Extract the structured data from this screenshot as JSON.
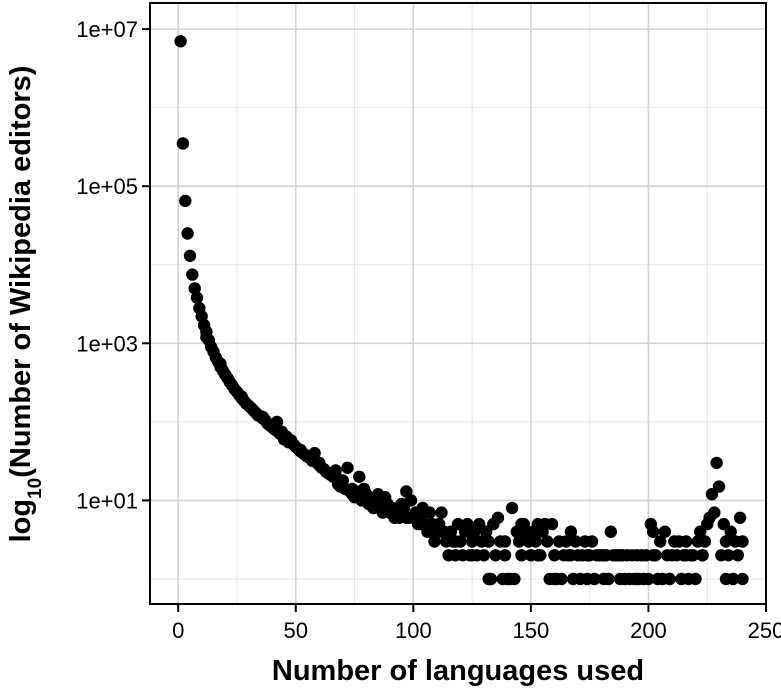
{
  "chart_data": {
    "type": "scatter",
    "title": "",
    "xlabel": "Number of languages used",
    "ylabel_parts": {
      "pre": "log",
      "sub": "10",
      "post": "(Number of Wikipedia editors)"
    },
    "xlim": [
      -12,
      250
    ],
    "ylim": [
      0.48,
      21500000
    ],
    "y_scale": "log10",
    "x_ticks": [
      0,
      50,
      100,
      150,
      200,
      250
    ],
    "x_tick_labels": [
      "0",
      "50",
      "100",
      "150",
      "200",
      "250"
    ],
    "y_ticks": [
      10,
      1000,
      100000,
      10000000
    ],
    "y_tick_labels": [
      "1e+01",
      "1e+03",
      "1e+05",
      "1e+07"
    ],
    "grid": true,
    "marker_color": "#000000",
    "points": [
      [
        1,
        7000000
      ],
      [
        2,
        350000
      ],
      [
        3,
        65000
      ],
      [
        4,
        25000
      ],
      [
        5,
        13000
      ],
      [
        6,
        7500
      ],
      [
        7,
        5000
      ],
      [
        8,
        3800
      ],
      [
        9,
        2800
      ],
      [
        10,
        2200
      ],
      [
        11,
        1700
      ],
      [
        12,
        1400
      ],
      [
        13,
        1100
      ],
      [
        14,
        900
      ],
      [
        15,
        780
      ],
      [
        16,
        660
      ],
      [
        17,
        580
      ],
      [
        18,
        500
      ],
      [
        19,
        450
      ],
      [
        20,
        400
      ],
      [
        21,
        360
      ],
      [
        22,
        320
      ],
      [
        23,
        290
      ],
      [
        24,
        260
      ],
      [
        25,
        240
      ],
      [
        26,
        220
      ],
      [
        27,
        200
      ],
      [
        28,
        185
      ],
      [
        29,
        170
      ],
      [
        30,
        160
      ],
      [
        31,
        150
      ],
      [
        32,
        140
      ],
      [
        33,
        130
      ],
      [
        34,
        120
      ],
      [
        35,
        118
      ],
      [
        36,
        110
      ],
      [
        37,
        105
      ],
      [
        38,
        95
      ],
      [
        39,
        90
      ],
      [
        40,
        85
      ],
      [
        41,
        80
      ],
      [
        42,
        100
      ],
      [
        43,
        72
      ],
      [
        44,
        68
      ],
      [
        45,
        60
      ],
      [
        46,
        65
      ],
      [
        47,
        55
      ],
      [
        48,
        58
      ],
      [
        49,
        52
      ],
      [
        50,
        48
      ],
      [
        51,
        45
      ],
      [
        52,
        42
      ],
      [
        53,
        40
      ],
      [
        54,
        38
      ],
      [
        55,
        36
      ],
      [
        56,
        35
      ],
      [
        57,
        32
      ],
      [
        58,
        40
      ],
      [
        59,
        30
      ],
      [
        60,
        28
      ],
      [
        61,
        26
      ],
      [
        62,
        25
      ],
      [
        63,
        23
      ],
      [
        64,
        22
      ],
      [
        65,
        21
      ],
      [
        66,
        20
      ],
      [
        67,
        24
      ],
      [
        68,
        16
      ],
      [
        69,
        15
      ],
      [
        70,
        18
      ],
      [
        71,
        14
      ],
      [
        72,
        26
      ],
      [
        73,
        13
      ],
      [
        74,
        12
      ],
      [
        75,
        11
      ],
      [
        76,
        13
      ],
      [
        77,
        20
      ],
      [
        78,
        10
      ],
      [
        79,
        14
      ],
      [
        80,
        12
      ],
      [
        81,
        9
      ],
      [
        82,
        10
      ],
      [
        83,
        8
      ],
      [
        84,
        9
      ],
      [
        85,
        12
      ],
      [
        86,
        8
      ],
      [
        87,
        7
      ],
      [
        88,
        11
      ],
      [
        89,
        9
      ],
      [
        90,
        7
      ],
      [
        91,
        8
      ],
      [
        92,
        6
      ],
      [
        93,
        7
      ],
      [
        94,
        6
      ],
      [
        95,
        9
      ],
      [
        96,
        8
      ],
      [
        97,
        13
      ],
      [
        98,
        6
      ],
      [
        99,
        10
      ],
      [
        100,
        6
      ],
      [
        101,
        7
      ],
      [
        102,
        5
      ],
      [
        103,
        6
      ],
      [
        104,
        8
      ],
      [
        105,
        5
      ],
      [
        106,
        4
      ],
      [
        107,
        7
      ],
      [
        108,
        5
      ],
      [
        109,
        3
      ],
      [
        110,
        4
      ],
      [
        111,
        5
      ],
      [
        112,
        7
      ],
      [
        113,
        4
      ],
      [
        114,
        3
      ],
      [
        115,
        2
      ],
      [
        116,
        4
      ],
      [
        117,
        3
      ],
      [
        118,
        2
      ],
      [
        119,
        5
      ],
      [
        120,
        3
      ],
      [
        121,
        2
      ],
      [
        122,
        4
      ],
      [
        123,
        5
      ],
      [
        124,
        2
      ],
      [
        125,
        3
      ],
      [
        126,
        4
      ],
      [
        127,
        2
      ],
      [
        128,
        5
      ],
      [
        129,
        3
      ],
      [
        130,
        2
      ],
      [
        131,
        4
      ],
      [
        132,
        3
      ],
      [
        133,
        1
      ],
      [
        134,
        5
      ],
      [
        135,
        2
      ],
      [
        136,
        6
      ],
      [
        137,
        3
      ],
      [
        138,
        1
      ],
      [
        139,
        2
      ],
      [
        140,
        1
      ],
      [
        141,
        1
      ],
      [
        142,
        8
      ],
      [
        143,
        1
      ],
      [
        144,
        4
      ],
      [
        145,
        3
      ],
      [
        146,
        2
      ],
      [
        147,
        5
      ],
      [
        148,
        4
      ],
      [
        149,
        3
      ],
      [
        150,
        2
      ],
      [
        151,
        4
      ],
      [
        152,
        3
      ],
      [
        153,
        5
      ],
      [
        154,
        2
      ],
      [
        155,
        4
      ],
      [
        156,
        5
      ],
      [
        157,
        3
      ],
      [
        158,
        1
      ],
      [
        159,
        5
      ],
      [
        160,
        2
      ],
      [
        161,
        1
      ],
      [
        162,
        3
      ],
      [
        163,
        1
      ],
      [
        164,
        2
      ],
      [
        165,
        3
      ],
      [
        166,
        2
      ],
      [
        167,
        4
      ],
      [
        168,
        1
      ],
      [
        169,
        3
      ],
      [
        170,
        2
      ],
      [
        171,
        1
      ],
      [
        172,
        2
      ],
      [
        173,
        3
      ],
      [
        174,
        1
      ],
      [
        175,
        2
      ],
      [
        176,
        3
      ],
      [
        177,
        1
      ],
      [
        178,
        2
      ],
      [
        179,
        2
      ],
      [
        180,
        2
      ],
      [
        181,
        1
      ],
      [
        182,
        2
      ],
      [
        183,
        1
      ],
      [
        184,
        4
      ],
      [
        185,
        2
      ],
      [
        186,
        2
      ],
      [
        187,
        2
      ],
      [
        188,
        1
      ],
      [
        189,
        2
      ],
      [
        190,
        1
      ],
      [
        191,
        2
      ],
      [
        192,
        1
      ],
      [
        193,
        2
      ],
      [
        194,
        1
      ],
      [
        195,
        2
      ],
      [
        196,
        1
      ],
      [
        197,
        2
      ],
      [
        198,
        1
      ],
      [
        199,
        2
      ],
      [
        200,
        1
      ],
      [
        201,
        5
      ],
      [
        202,
        4
      ],
      [
        203,
        2
      ],
      [
        204,
        1
      ],
      [
        205,
        3
      ],
      [
        206,
        1
      ],
      [
        207,
        4
      ],
      [
        208,
        2
      ],
      [
        209,
        1
      ],
      [
        210,
        2
      ],
      [
        211,
        3
      ],
      [
        212,
        2
      ],
      [
        213,
        3
      ],
      [
        214,
        1
      ],
      [
        215,
        2
      ],
      [
        216,
        3
      ],
      [
        217,
        1
      ],
      [
        218,
        2
      ],
      [
        219,
        2
      ],
      [
        220,
        1
      ],
      [
        221,
        3
      ],
      [
        222,
        4
      ],
      [
        223,
        2
      ],
      [
        224,
        3
      ],
      [
        225,
        5
      ],
      [
        226,
        6
      ],
      [
        227,
        12
      ],
      [
        228,
        7
      ],
      [
        229,
        30
      ],
      [
        230,
        15
      ],
      [
        231,
        2
      ],
      [
        232,
        5
      ],
      [
        233,
        3
      ],
      [
        234,
        2
      ],
      [
        235,
        4
      ],
      [
        236,
        1
      ],
      [
        237,
        3
      ],
      [
        238,
        2
      ],
      [
        239,
        6
      ],
      [
        240,
        3
      ],
      [
        12,
        1200
      ],
      [
        18,
        550
      ],
      [
        27,
        210
      ],
      [
        36,
        115
      ],
      [
        44,
        75
      ],
      [
        52,
        44
      ],
      [
        60,
        30
      ],
      [
        67,
        20
      ],
      [
        74,
        14
      ],
      [
        83,
        9
      ],
      [
        90,
        8
      ],
      [
        97,
        6
      ],
      [
        104,
        5
      ],
      [
        111,
        4
      ],
      [
        118,
        3
      ],
      [
        125,
        2
      ],
      [
        132,
        1
      ],
      [
        139,
        3
      ],
      [
        146,
        5
      ],
      [
        153,
        2
      ],
      [
        160,
        1
      ],
      [
        167,
        2
      ],
      [
        174,
        2
      ],
      [
        181,
        2
      ],
      [
        188,
        2
      ],
      [
        195,
        1
      ],
      [
        202,
        2
      ],
      [
        209,
        1
      ],
      [
        216,
        2
      ],
      [
        223,
        2
      ],
      [
        233,
        1
      ],
      [
        240,
        1
      ]
    ]
  }
}
